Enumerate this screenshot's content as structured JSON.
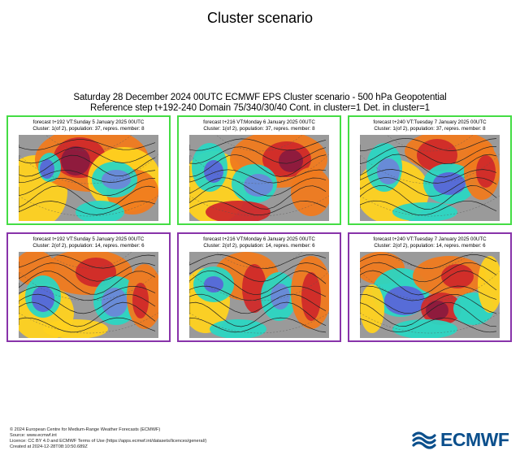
{
  "page": {
    "title": "Cluster scenario",
    "header_line1": "Saturday 28 December 2024 00UTC ECMWF EPS Cluster scenario - 500 hPa Geopotential",
    "header_line2": "Reference step t+192-240 Domain 75/340/30/40 Cont. in cluster=1 Det. in cluster=1"
  },
  "colors": {
    "cluster1_border": "#44dd44",
    "cluster2_border": "#8833aa",
    "brand": "#0b4f8c"
  },
  "panels": [
    {
      "cluster": 1,
      "line1": "forecast t+192 VT:Sunday 5 January 2025 00UTC",
      "line2": "Cluster: 1(of 2), population: 37, repres. member: 8"
    },
    {
      "cluster": 1,
      "line1": "forecast t+216 VT:Monday 6 January 2025 00UTC",
      "line2": "Cluster: 1(of 2), population: 37, repres. member: 8"
    },
    {
      "cluster": 1,
      "line1": "forecast t+240 VT:Tuesday 7 January 2025 00UTC",
      "line2": "Cluster: 1(of 2), population: 37, repres. member: 8"
    },
    {
      "cluster": 2,
      "line1": "forecast t+192 VT:Sunday 5 January 2025 00UTC",
      "line2": "Cluster: 2(of 2), population: 14, repres. member: 6"
    },
    {
      "cluster": 2,
      "line1": "forecast t+216 VT:Monday 6 January 2025 00UTC",
      "line2": "Cluster: 2(of 2), population: 14, repres. member: 6"
    },
    {
      "cluster": 2,
      "line1": "forecast t+240 VT:Tuesday 7 January 2025 00UTC",
      "line2": "Cluster: 2(of 2), population: 14, repres. member: 6"
    }
  ],
  "footer": {
    "line1": "© 2024 European Centre for Medium-Range Weather Forecasts (ECMWF)",
    "line2": "Source: www.ecmwf.int",
    "line3": "Licence: CC BY 4.0 and ECMWF Terms of Use (https://apps.ecmwf.int/datasets/licences/general/)",
    "line4": "Created at 2024-12-28T08:10:50.689Z"
  },
  "logo": {
    "text": "ECMWF",
    "icon": "ecmwf-logo-icon"
  }
}
